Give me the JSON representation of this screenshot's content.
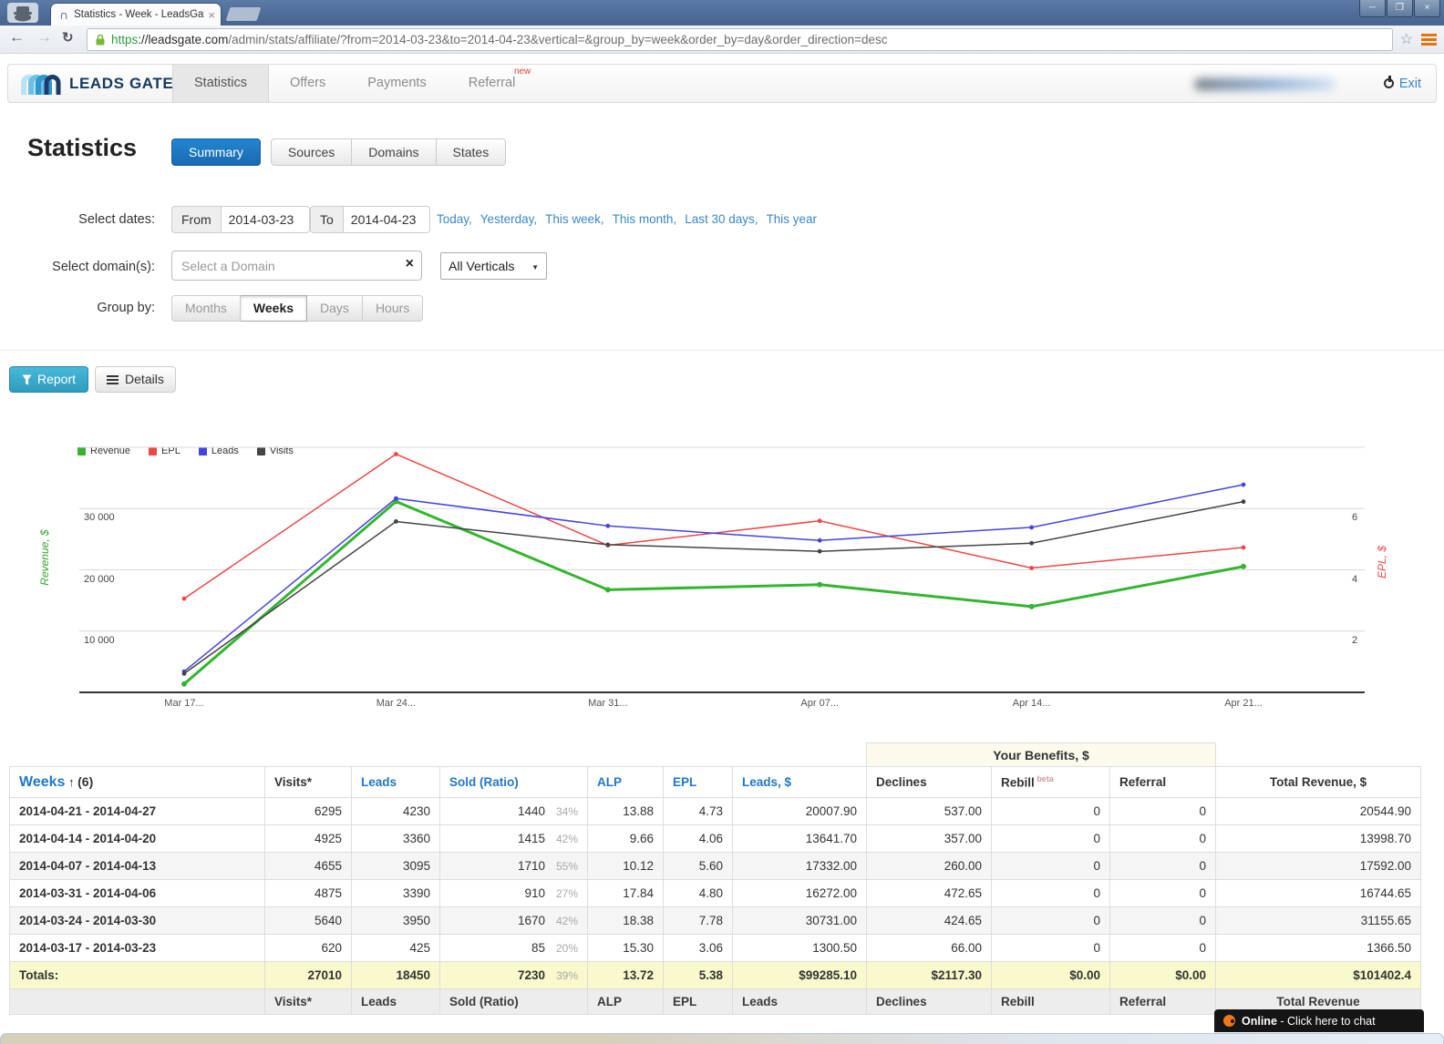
{
  "browser": {
    "tab_title": "Statistics - Week - LeadsGate",
    "url_scheme": "https",
    "url_domain": "://leadsgate.com",
    "url_path": "/admin/stats/affiliate/?from=2014-03-23&to=2014-04-23&vertical=&group_by=week&order_by=day&order_direction=desc"
  },
  "nav": {
    "brand": "LEADS GATE",
    "items": [
      {
        "label": "Statistics",
        "active": true
      },
      {
        "label": "Offers",
        "active": false
      },
      {
        "label": "Payments",
        "active": false
      },
      {
        "label": "Referral",
        "active": false,
        "badge": "new"
      }
    ],
    "exit_label": "Exit"
  },
  "page": {
    "title": "Statistics",
    "tabs": [
      {
        "label": "Summary",
        "active": true
      },
      {
        "label": "Sources",
        "active": false
      },
      {
        "label": "Domains",
        "active": false
      },
      {
        "label": "States",
        "active": false
      }
    ]
  },
  "filters": {
    "dates_label": "Select dates:",
    "from_label": "From",
    "from_value": "2014-03-23",
    "to_label": "To",
    "to_value": "2014-04-23",
    "quick_links": [
      "Today",
      "Yesterday",
      "This week",
      "This month",
      "Last 30 days",
      "This year"
    ],
    "domain_label": "Select domain(s):",
    "domain_placeholder": "Select a Domain",
    "vertical_value": "All Verticals",
    "group_label": "Group by:",
    "group_options": [
      {
        "label": "Months",
        "active": false
      },
      {
        "label": "Weeks",
        "active": true
      },
      {
        "label": "Days",
        "active": false
      },
      {
        "label": "Hours",
        "active": false
      }
    ]
  },
  "actions": {
    "report": "Report",
    "details": "Details"
  },
  "chart_data": {
    "type": "line",
    "x_labels": [
      "Mar 17...",
      "Mar 24...",
      "Mar 31...",
      "Apr 07...",
      "Apr 14...",
      "Apr 21..."
    ],
    "left_axis": {
      "label": "Revenue, $",
      "ticks": [
        "10 000",
        "20 000",
        "30 000"
      ],
      "color": "#33a832"
    },
    "right_axis": {
      "label": "EPL, $",
      "ticks": [
        "2",
        "4",
        "6"
      ],
      "color": "#f04545"
    },
    "series": [
      {
        "name": "Revenue",
        "color": "#33b52f",
        "width": 3,
        "axis_max": 41200,
        "values": [
          1366.5,
          31155.65,
          16744.65,
          17592.0,
          13998.7,
          20544.9
        ]
      },
      {
        "name": "EPL",
        "color": "#f04545",
        "width": 1.5,
        "axis_max": 8.24,
        "values": [
          3.06,
          7.78,
          4.8,
          5.6,
          4.06,
          4.73
        ]
      },
      {
        "name": "Leads",
        "color": "#4444e0",
        "width": 1.5,
        "axis_max": 5140,
        "values": [
          425,
          3950,
          3390,
          3095,
          3360,
          4230
        ]
      },
      {
        "name": "Visits",
        "color": "#444444",
        "width": 1.5,
        "axis_max": 8330,
        "values": [
          620,
          5640,
          4875,
          4655,
          4925,
          6295
        ]
      }
    ]
  },
  "table": {
    "group_header": "Your Benefits, $",
    "weeks_header": "Weeks",
    "sort_arrow": "↑",
    "count": "(6)",
    "columns": [
      {
        "label": "Visits*",
        "sortable": false
      },
      {
        "label": "Leads",
        "sortable": true
      },
      {
        "label": "Sold (Ratio)",
        "sortable": true
      },
      {
        "label": "ALP",
        "sortable": true
      },
      {
        "label": "EPL",
        "sortable": true
      },
      {
        "label": "Leads, $",
        "sortable": true
      },
      {
        "label": "Declines",
        "sortable": false
      },
      {
        "label": "Rebill",
        "sortable": false,
        "sup": "beta"
      },
      {
        "label": "Referral",
        "sortable": false
      },
      {
        "label": "Total Revenue, $",
        "sortable": false
      }
    ],
    "rows": [
      {
        "week": "2014-04-21 - 2014-04-27",
        "visits": "6295",
        "leads": "4230",
        "sold": "1440",
        "sold_pct": "34%",
        "alp": "13.88",
        "epl": "4.73",
        "leads_usd": "20007.90",
        "declines": "537.00",
        "rebill": "0",
        "referral": "0",
        "total": "20544.90"
      },
      {
        "week": "2014-04-14 - 2014-04-20",
        "visits": "4925",
        "leads": "3360",
        "sold": "1415",
        "sold_pct": "42%",
        "alp": "9.66",
        "epl": "4.06",
        "leads_usd": "13641.70",
        "declines": "357.00",
        "rebill": "0",
        "referral": "0",
        "total": "13998.70"
      },
      {
        "week": "2014-04-07 - 2014-04-13",
        "visits": "4655",
        "leads": "3095",
        "sold": "1710",
        "sold_pct": "55%",
        "alp": "10.12",
        "epl": "5.60",
        "leads_usd": "17332.00",
        "declines": "260.00",
        "rebill": "0",
        "referral": "0",
        "total": "17592.00"
      },
      {
        "week": "2014-03-31 - 2014-04-06",
        "visits": "4875",
        "leads": "3390",
        "sold": "910",
        "sold_pct": "27%",
        "alp": "17.84",
        "epl": "4.80",
        "leads_usd": "16272.00",
        "declines": "472.65",
        "rebill": "0",
        "referral": "0",
        "total": "16744.65"
      },
      {
        "week": "2014-03-24 - 2014-03-30",
        "visits": "5640",
        "leads": "3950",
        "sold": "1670",
        "sold_pct": "42%",
        "alp": "18.38",
        "epl": "7.78",
        "leads_usd": "30731.00",
        "declines": "424.65",
        "rebill": "0",
        "referral": "0",
        "total": "31155.65"
      },
      {
        "week": "2014-03-17 - 2014-03-23",
        "visits": "620",
        "leads": "425",
        "sold": "85",
        "sold_pct": "20%",
        "alp": "15.30",
        "epl": "3.06",
        "leads_usd": "1300.50",
        "declines": "66.00",
        "rebill": "0",
        "referral": "0",
        "total": "1366.50"
      }
    ],
    "totals": {
      "label": "Totals:",
      "visits": "27010",
      "leads": "18450",
      "sold": "7230",
      "sold_pct": "39%",
      "alp": "13.72",
      "epl": "5.38",
      "leads_usd": "$99285.10",
      "declines": "$2117.30",
      "rebill": "$0.00",
      "referral": "$0.00",
      "total": "$101402.4"
    },
    "footer": [
      "",
      "Visits*",
      "Leads",
      "Sold (Ratio)",
      "ALP",
      "EPL",
      "Leads",
      "Declines",
      "Rebill",
      "Referral",
      "Total Revenue"
    ]
  },
  "chat": {
    "status": "Online",
    "text": " - Click here to chat"
  }
}
